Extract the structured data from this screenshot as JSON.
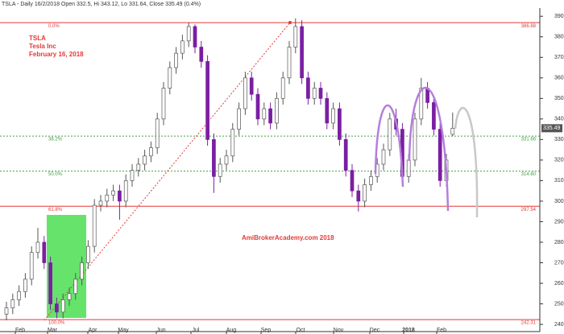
{
  "chart_data": {
    "type": "candlestick",
    "header": "TSLA - Daily 16/2/2018 Open 332.5, Hi 343.12, Lo 331.64, Close 335.49 (0.4%)",
    "annotations": [
      "TSLA",
      "Tesla Inc",
      "February 16, 2018"
    ],
    "watermark": "AmiBrokerAcademy.com  2018",
    "x_labels": [
      "Feb",
      "Mar",
      "Apr",
      "May",
      "Jun",
      "Jul",
      "Aug",
      "Sep",
      "Oct",
      "Nov",
      "Dec",
      "2018",
      "Feb"
    ],
    "open": [
      245,
      248,
      252,
      256,
      262,
      275,
      280,
      270,
      250,
      246,
      252,
      255,
      262,
      270,
      278,
      298,
      300,
      303,
      305,
      300,
      310,
      315,
      318,
      322,
      326,
      340,
      355,
      365,
      372,
      378,
      385,
      375,
      368,
      330,
      312,
      318,
      322,
      335,
      345,
      360,
      352,
      340,
      345,
      338,
      350,
      360,
      375,
      385,
      360,
      350,
      355,
      350,
      338,
      345,
      330,
      315,
      305,
      300,
      308,
      312,
      318,
      325,
      340,
      335,
      312,
      320,
      340,
      355,
      348,
      335,
      310,
      332.5
    ],
    "high": [
      251,
      255,
      259,
      265,
      278,
      287,
      283,
      273,
      253,
      255,
      258,
      265,
      273,
      281,
      301,
      303,
      306,
      308,
      308,
      313,
      318,
      321,
      325,
      329,
      343,
      358,
      368,
      375,
      381,
      386.88,
      386,
      378,
      371,
      333,
      321,
      325,
      338,
      348,
      363,
      363,
      355,
      348,
      348,
      353,
      363,
      378,
      389,
      388,
      363,
      358,
      358,
      353,
      348,
      348,
      333,
      318,
      308,
      311,
      315,
      321,
      328,
      343,
      345,
      338,
      323,
      343,
      360,
      358,
      351,
      338,
      323,
      343.12
    ],
    "low": [
      242,
      245,
      249,
      253,
      259,
      272,
      267,
      247,
      243,
      243,
      249,
      252,
      259,
      267,
      275,
      295,
      297,
      300,
      291,
      297,
      307,
      312,
      315,
      319,
      323,
      337,
      352,
      362,
      369,
      375,
      372,
      365,
      327,
      304,
      309,
      315,
      319,
      332,
      342,
      349,
      337,
      337,
      335,
      335,
      347,
      357,
      372,
      357,
      347,
      347,
      347,
      335,
      335,
      327,
      312,
      302,
      295,
      297,
      305,
      309,
      315,
      322,
      332,
      309,
      309,
      317,
      337,
      345,
      332,
      307,
      307,
      331.64
    ],
    "close": [
      248,
      252,
      256,
      262,
      275,
      280,
      270,
      250,
      246,
      252,
      255,
      262,
      270,
      278,
      298,
      300,
      303,
      305,
      300,
      310,
      315,
      318,
      322,
      326,
      340,
      355,
      365,
      372,
      378,
      385,
      375,
      368,
      330,
      312,
      318,
      322,
      335,
      345,
      360,
      352,
      340,
      345,
      338,
      350,
      360,
      375,
      385,
      360,
      350,
      355,
      350,
      338,
      345,
      330,
      315,
      305,
      300,
      308,
      312,
      318,
      325,
      340,
      335,
      312,
      320,
      340,
      355,
      348,
      335,
      310,
      320,
      335.49
    ],
    "up_color": "#ffffff",
    "down_color": "#7b1fa2",
    "ylim": [
      236.5,
      394
    ],
    "yticks": [
      240,
      250,
      260,
      270,
      280,
      290,
      300,
      310,
      320,
      330,
      340,
      350,
      360,
      370,
      380,
      390
    ],
    "fib": {
      "names": [
        "0.0%",
        "38.2%",
        "50.0%",
        "61.8%",
        "100.0%"
      ],
      "values": [
        386.88,
        331.66,
        314.6,
        297.54,
        242.31
      ],
      "value_labels": [
        "386.88",
        "331.66",
        "314.60",
        "297.54",
        "242.31"
      ],
      "colors": [
        "#e53935",
        "#43a047",
        "#43a047",
        "#e53935",
        "#e53935"
      ],
      "dashed": [
        false,
        true,
        true,
        false,
        false
      ]
    }
  }
}
